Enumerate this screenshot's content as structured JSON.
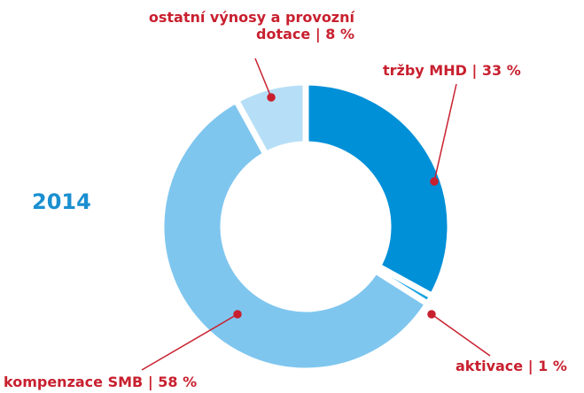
{
  "chart_data": {
    "type": "donut",
    "title": "2014",
    "categories": [
      "tržby MHD",
      "aktivace",
      "kompenzace SMB",
      "ostatní výnosy a provozní dotace"
    ],
    "values": [
      33,
      1,
      58,
      8
    ],
    "value_labels": [
      "| 33 %",
      "| 1 %",
      "| 58 %",
      "| 8 %"
    ],
    "colors": [
      "#0090d8",
      "#1aa3e2",
      "#7fc6ef",
      "#b6dff7"
    ]
  }
}
